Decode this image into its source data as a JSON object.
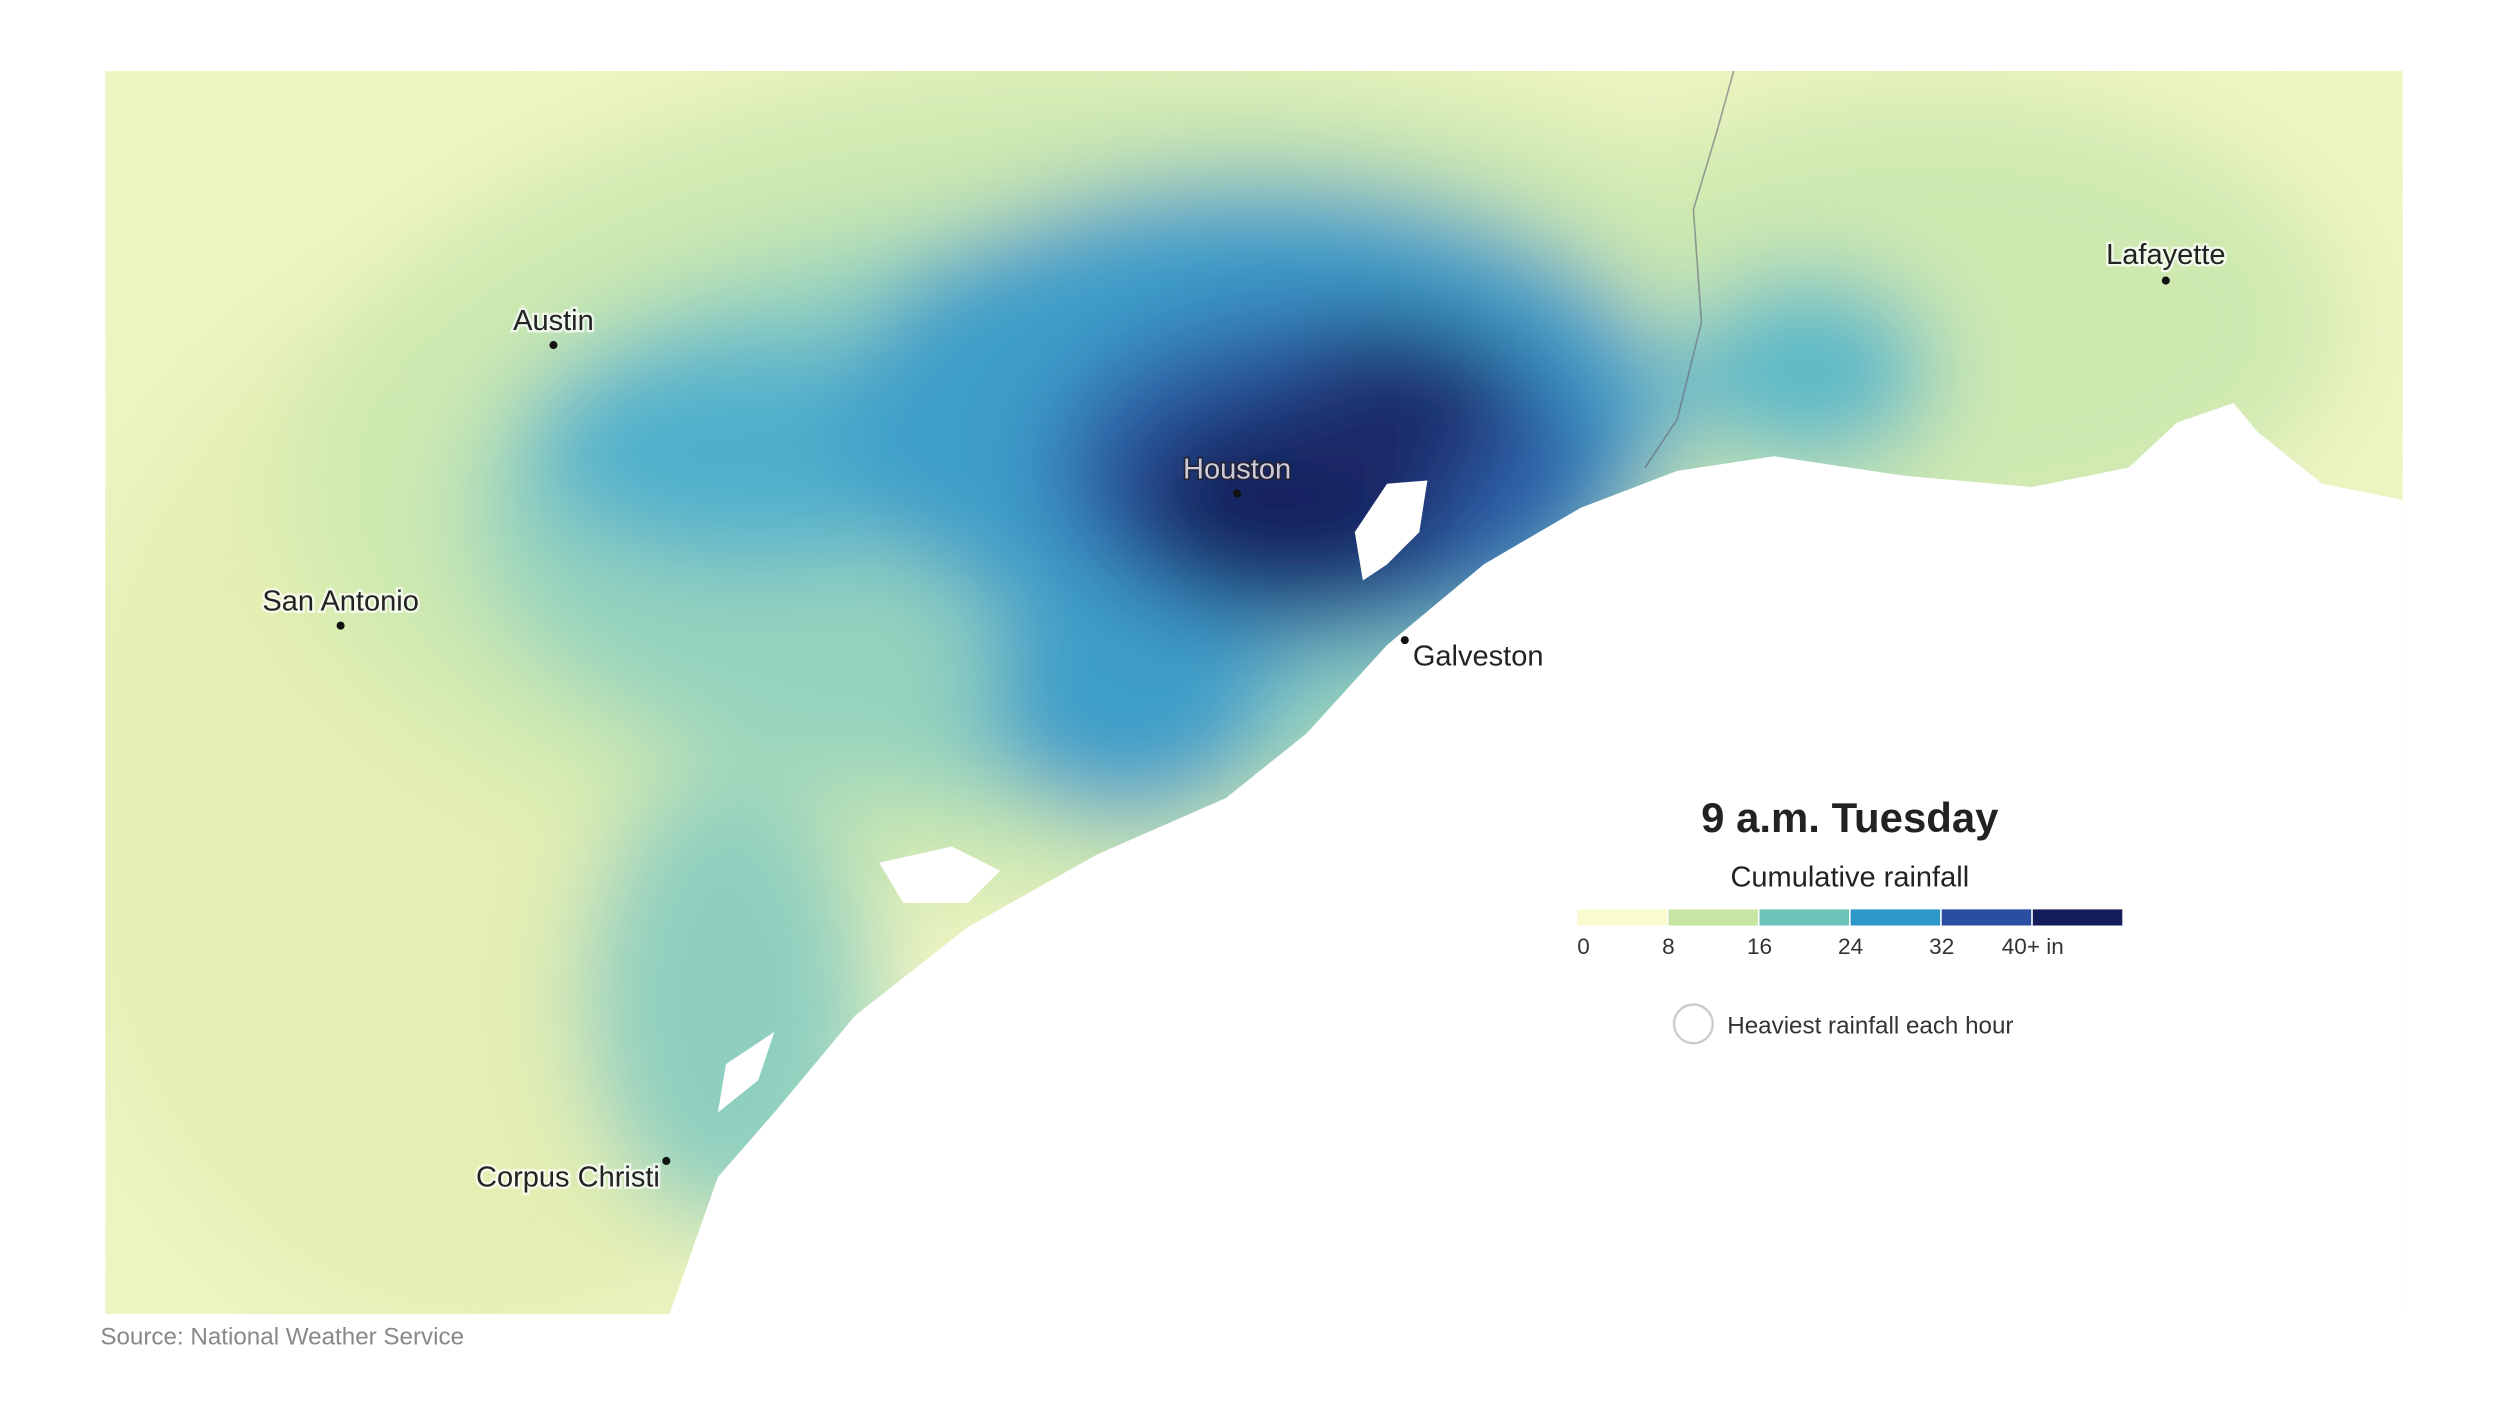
{
  "map": {
    "cities": [
      {
        "name": "Austin"
      },
      {
        "name": "San Antonio"
      },
      {
        "name": "Houston"
      },
      {
        "name": "Galveston"
      },
      {
        "name": "Lafayette"
      },
      {
        "name": "Corpus Christi"
      }
    ]
  },
  "legend": {
    "title": "9 a.m. Tuesday",
    "subtitle": "Cumulative rainfall",
    "bins": [
      {
        "label": "0",
        "color": "#fbfbd0"
      },
      {
        "label": "8",
        "color": "#c7e6a4"
      },
      {
        "label": "16",
        "color": "#6cc3b8"
      },
      {
        "label": "24",
        "color": "#2c98c8"
      },
      {
        "label": "32",
        "color": "#2a4ea0"
      },
      {
        "label": "40+ in",
        "color": "#141d5c"
      }
    ],
    "marker_label": "Heaviest rainfall each hour"
  },
  "source": "Source: National Weather Service"
}
